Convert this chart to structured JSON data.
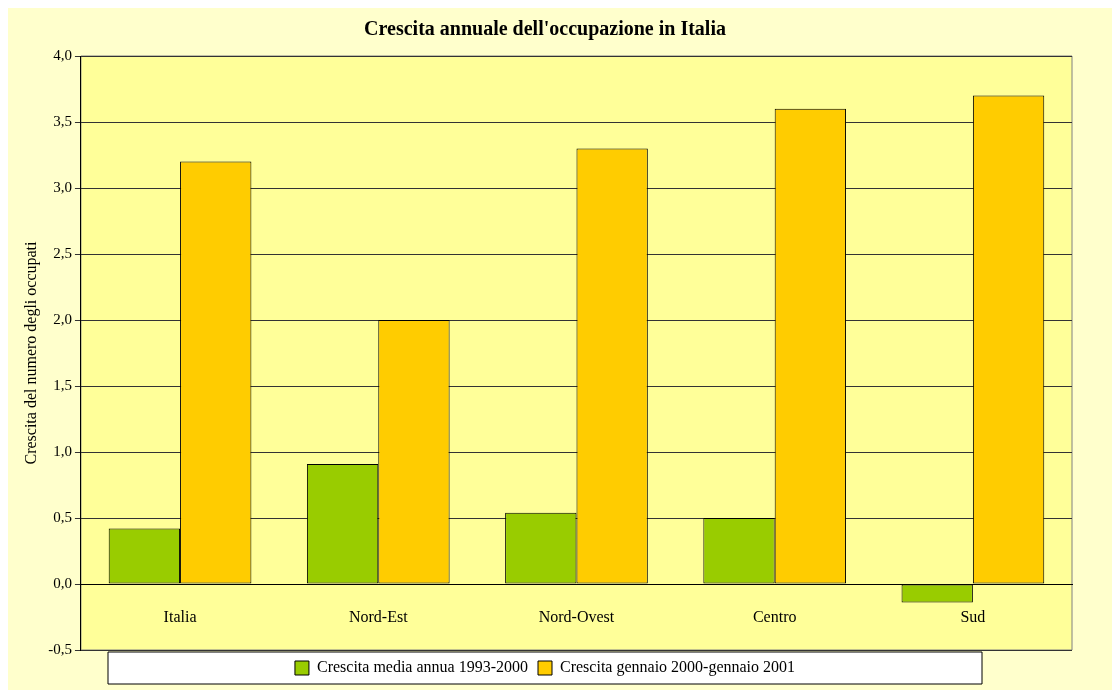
{
  "chart_data": {
    "type": "bar",
    "title": "Crescita annuale dell'occupazione in Italia",
    "ylabel": "Crescita del numero degli occupati",
    "categories": [
      "Italia",
      "Nord-Est",
      "Nord-Ovest",
      "Centro",
      "Sud"
    ],
    "series": [
      {
        "name": "Crescita media annua 1993-2000",
        "color": "#99cc00",
        "values": [
          0.42,
          0.91,
          0.54,
          0.5,
          -0.14
        ]
      },
      {
        "name": "Crescita gennaio 2000-gennaio 2001",
        "color": "#ffcc00",
        "values": [
          3.2,
          2.0,
          3.3,
          3.6,
          3.7
        ]
      }
    ],
    "ylim": [
      -0.5,
      4.0
    ],
    "yticks": [
      {
        "value": -0.5,
        "label": "-0,5"
      },
      {
        "value": 0,
        "label": "0,0"
      },
      {
        "value": 0.5,
        "label": "0,5"
      },
      {
        "value": 1,
        "label": "1,0"
      },
      {
        "value": 1.5,
        "label": "1,5"
      },
      {
        "value": 2,
        "label": "2,0"
      },
      {
        "value": 2.5,
        "label": "2,5"
      },
      {
        "value": 3,
        "label": "3,0"
      },
      {
        "value": 3.5,
        "label": "3,5"
      },
      {
        "value": 4,
        "label": "4,0"
      }
    ],
    "grid": "y",
    "legend": "bottom"
  }
}
